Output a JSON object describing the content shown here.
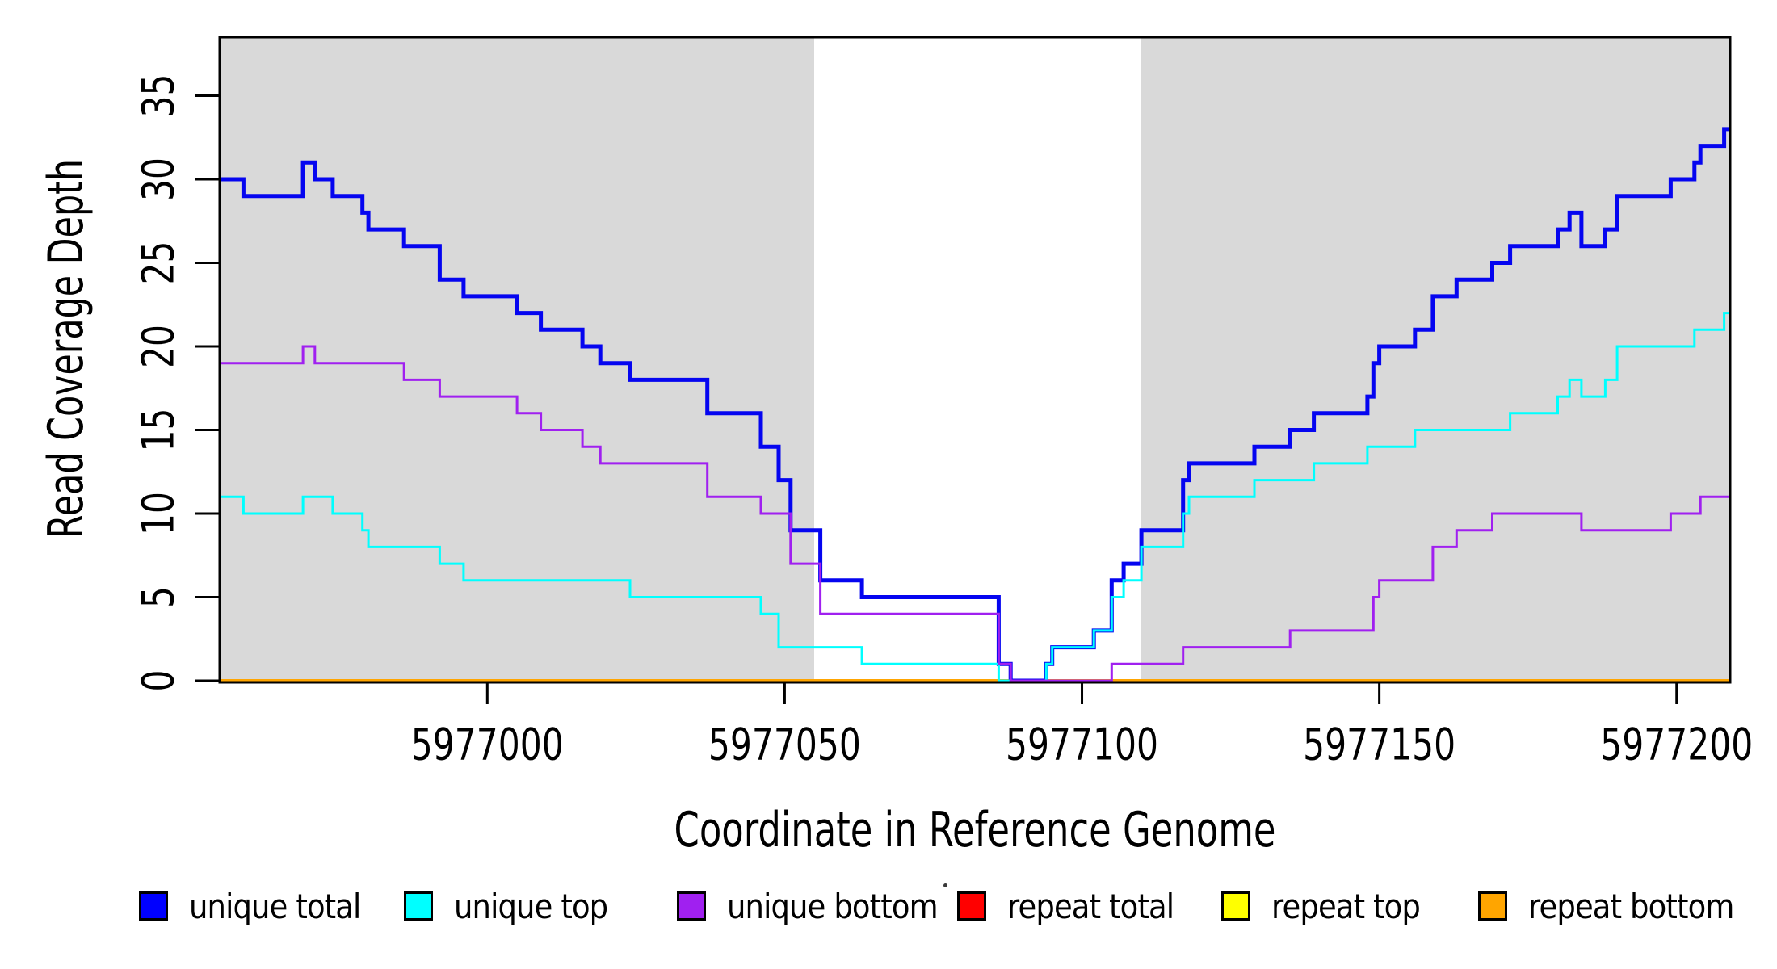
{
  "x_axis": {
    "title": "Coordinate in Reference Genome",
    "ticks": [
      {
        "value": 5977000,
        "label": "5977000"
      },
      {
        "value": 5977050,
        "label": "5977050"
      },
      {
        "value": 5977100,
        "label": "5977100"
      },
      {
        "value": 5977150,
        "label": "5977150"
      },
      {
        "value": 5977200,
        "label": "5977200"
      }
    ]
  },
  "y_axis": {
    "title": "Read Coverage Depth",
    "ticks": [
      {
        "value": 0,
        "label": "0"
      },
      {
        "value": 5,
        "label": "5"
      },
      {
        "value": 10,
        "label": "10"
      },
      {
        "value": 15,
        "label": "15"
      },
      {
        "value": 20,
        "label": "20"
      },
      {
        "value": 25,
        "label": "25"
      },
      {
        "value": 30,
        "label": "30"
      },
      {
        "value": 35,
        "label": "35"
      }
    ]
  },
  "legend": {
    "items": [
      {
        "label": "unique total",
        "color": "#0000FF"
      },
      {
        "label": "unique top",
        "color": "#00FFFF"
      },
      {
        "label": "unique bottom",
        "color": "#A020F0"
      },
      {
        "label": "repeat total",
        "color": "#FF0000"
      },
      {
        "label": "repeat top",
        "color": "#FFFF00"
      },
      {
        "label": "repeat bottom",
        "color": "#FFA500"
      }
    ]
  },
  "chart_data": {
    "type": "line",
    "step_mode": "post",
    "title": "",
    "xlabel": "Coordinate in Reference Genome",
    "ylabel": "Read Coverage Depth",
    "xlim": [
      5976955,
      5977209
    ],
    "ylim": [
      0,
      38.5
    ],
    "grid": false,
    "legend_position": "bottom",
    "background_color": "#FFFFFF",
    "shaded_regions": [
      {
        "x0": 5976955,
        "x1": 5977055,
        "color": "#D9D9D9"
      },
      {
        "x0": 5977110,
        "x1": 5977209,
        "color": "#D9D9D9"
      }
    ],
    "series": [
      {
        "name": "repeat total",
        "color": "#FF0000",
        "width": 3,
        "points": [
          [
            5976955,
            0
          ],
          [
            5977209,
            0
          ]
        ]
      },
      {
        "name": "repeat top",
        "color": "#FFFF00",
        "width": 3,
        "points": [
          [
            5976955,
            0
          ],
          [
            5977209,
            0
          ]
        ]
      },
      {
        "name": "repeat bottom",
        "color": "#FFA500",
        "width": 4,
        "points": [
          [
            5976955,
            0
          ],
          [
            5977209,
            0
          ]
        ]
      },
      {
        "name": "unique total",
        "color": "#0505F0",
        "width": 5,
        "points": [
          [
            5976955,
            30
          ],
          [
            5976959,
            29
          ],
          [
            5976969,
            31
          ],
          [
            5976971,
            30
          ],
          [
            5976974,
            29
          ],
          [
            5976979,
            28
          ],
          [
            5976980,
            27
          ],
          [
            5976986,
            26
          ],
          [
            5976992,
            24
          ],
          [
            5976996,
            23
          ],
          [
            5977005,
            22
          ],
          [
            5977009,
            21
          ],
          [
            5977016,
            20
          ],
          [
            5977019,
            19
          ],
          [
            5977024,
            18
          ],
          [
            5977037,
            16
          ],
          [
            5977046,
            14
          ],
          [
            5977049,
            12
          ],
          [
            5977051,
            9
          ],
          [
            5977056,
            6
          ],
          [
            5977063,
            5
          ],
          [
            5977086,
            1
          ],
          [
            5977088,
            0
          ],
          [
            5977094,
            1
          ],
          [
            5977095,
            2
          ],
          [
            5977102,
            3
          ],
          [
            5977105,
            6
          ],
          [
            5977107,
            7
          ],
          [
            5977110,
            9
          ],
          [
            5977117,
            12
          ],
          [
            5977118,
            13
          ],
          [
            5977129,
            14
          ],
          [
            5977135,
            15
          ],
          [
            5977139,
            16
          ],
          [
            5977148,
            17
          ],
          [
            5977149,
            19
          ],
          [
            5977150,
            20
          ],
          [
            5977156,
            21
          ],
          [
            5977159,
            23
          ],
          [
            5977163,
            24
          ],
          [
            5977169,
            25
          ],
          [
            5977172,
            26
          ],
          [
            5977180,
            27
          ],
          [
            5977182,
            28
          ],
          [
            5977184,
            26
          ],
          [
            5977188,
            27
          ],
          [
            5977190,
            29
          ],
          [
            5977199,
            30
          ],
          [
            5977203,
            31
          ],
          [
            5977204,
            32
          ],
          [
            5977208,
            33
          ],
          [
            5977209,
            33
          ]
        ]
      },
      {
        "name": "unique top",
        "color": "#00FFFF",
        "width": 3,
        "points": [
          [
            5976955,
            11
          ],
          [
            5976959,
            10
          ],
          [
            5976969,
            11
          ],
          [
            5976974,
            10
          ],
          [
            5976979,
            9
          ],
          [
            5976980,
            8
          ],
          [
            5976992,
            7
          ],
          [
            5976996,
            6
          ],
          [
            5977024,
            5
          ],
          [
            5977046,
            4
          ],
          [
            5977049,
            2
          ],
          [
            5977063,
            1
          ],
          [
            5977086,
            0
          ],
          [
            5977094,
            1
          ],
          [
            5977095,
            2
          ],
          [
            5977102,
            3
          ],
          [
            5977105,
            5
          ],
          [
            5977107,
            6
          ],
          [
            5977110,
            8
          ],
          [
            5977117,
            10
          ],
          [
            5977118,
            11
          ],
          [
            5977129,
            12
          ],
          [
            5977139,
            13
          ],
          [
            5977148,
            14
          ],
          [
            5977156,
            15
          ],
          [
            5977172,
            16
          ],
          [
            5977180,
            17
          ],
          [
            5977182,
            18
          ],
          [
            5977184,
            17
          ],
          [
            5977188,
            18
          ],
          [
            5977190,
            20
          ],
          [
            5977203,
            21
          ],
          [
            5977208,
            22
          ],
          [
            5977209,
            22
          ]
        ]
      },
      {
        "name": "unique bottom",
        "color": "#A020F0",
        "width": 3,
        "points": [
          [
            5976955,
            19
          ],
          [
            5976969,
            20
          ],
          [
            5976971,
            19
          ],
          [
            5976986,
            18
          ],
          [
            5976992,
            17
          ],
          [
            5977005,
            16
          ],
          [
            5977009,
            15
          ],
          [
            5977016,
            14
          ],
          [
            5977019,
            13
          ],
          [
            5977037,
            11
          ],
          [
            5977046,
            10
          ],
          [
            5977051,
            7
          ],
          [
            5977056,
            4
          ],
          [
            5977086,
            1
          ],
          [
            5977088,
            0
          ],
          [
            5977105,
            1
          ],
          [
            5977117,
            2
          ],
          [
            5977135,
            3
          ],
          [
            5977149,
            5
          ],
          [
            5977150,
            6
          ],
          [
            5977159,
            8
          ],
          [
            5977163,
            9
          ],
          [
            5977169,
            10
          ],
          [
            5977184,
            9
          ],
          [
            5977199,
            10
          ],
          [
            5977204,
            11
          ],
          [
            5977209,
            11
          ]
        ]
      }
    ]
  },
  "misc": {
    "stray_mark": "·"
  }
}
